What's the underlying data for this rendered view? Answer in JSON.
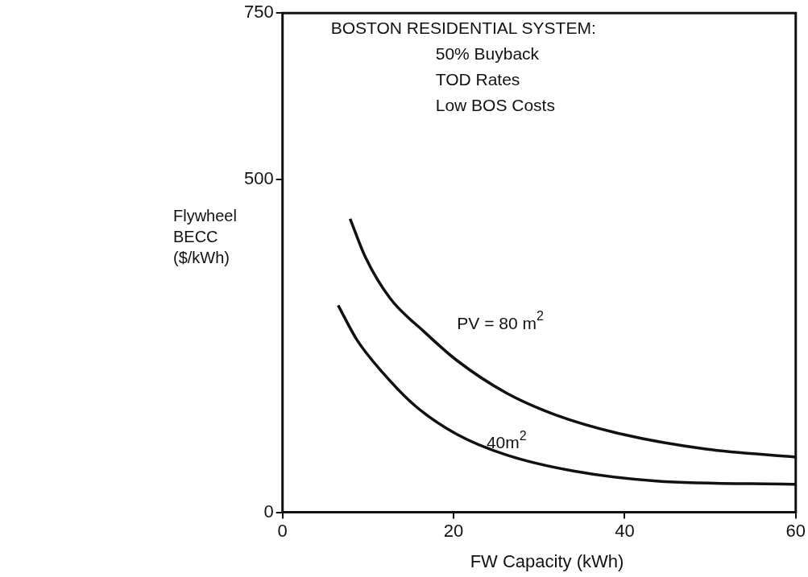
{
  "chart_data": {
    "type": "line",
    "xlabel": "FW Capacity (kWh)",
    "ylabel": "Flywheel\nBECC\n($/kWh)",
    "annotations": [
      "BOSTON RESIDENTIAL SYSTEM:",
      "50% Buyback",
      "TOD Rates",
      "Low BOS Costs"
    ],
    "xlim": [
      0,
      60
    ],
    "xticks": [
      0,
      20,
      40,
      60
    ],
    "ylim": [
      0,
      750
    ],
    "yticks": [
      0,
      500,
      750
    ],
    "grid": false,
    "legend": false,
    "marker": "none",
    "line_style": "solid",
    "series": [
      {
        "name": "PV = 80 m$^{2}$",
        "color": "#111111",
        "x": [
          7.9,
          9.7,
          12.6,
          16.5,
          20.4,
          26.2,
          32,
          39.8,
          49.5,
          60
        ],
        "values": [
          441,
          383,
          321,
          272,
          228,
          179,
          146,
          117,
          95,
          83
        ]
      },
      {
        "name": "40m$^{2}$",
        "color": "#111111",
        "x": [
          6.5,
          8.7,
          11.7,
          15.5,
          20.4,
          26.2,
          34,
          43.7,
          60
        ],
        "values": [
          311,
          259,
          210,
          160,
          117,
          86,
          62,
          47,
          42
        ]
      }
    ]
  }
}
